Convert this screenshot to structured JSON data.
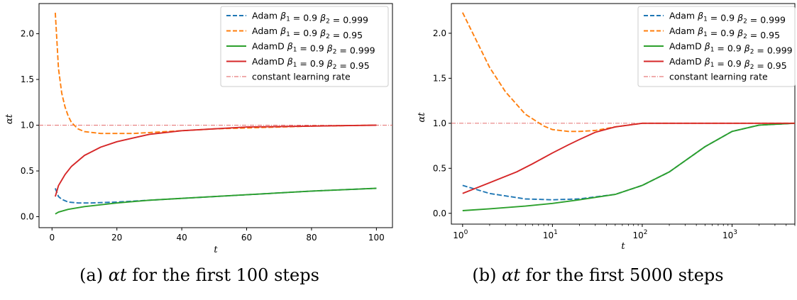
{
  "colors": {
    "adam_0999": "#1f77b4",
    "adam_095": "#ff7f0e",
    "adamd_0999": "#2ca02c",
    "adamd_095": "#d62728",
    "constant_lr": "#e05a5a"
  },
  "captions": [
    {
      "prefix": "(a) ",
      "math": "αt",
      "suffix": " for the first 100 steps"
    },
    {
      "prefix": "(b) ",
      "math": "αt",
      "suffix": " for the first 5000 steps"
    }
  ],
  "legend_entries": [
    {
      "name": "Adam",
      "b1": "0.9",
      "b2": "0.999",
      "style": "dashed",
      "color_key": "adam_0999"
    },
    {
      "name": "Adam",
      "b1": "0.9",
      "b2": "0.95",
      "style": "dashed",
      "color_key": "adam_095"
    },
    {
      "name": "AdamD",
      "b1": "0.9",
      "b2": "0.999",
      "style": "solid",
      "color_key": "adamd_0999"
    },
    {
      "name": "AdamD",
      "b1": "0.9",
      "b2": "0.95",
      "style": "solid",
      "color_key": "adamd_095"
    },
    {
      "name": "constant learning rate",
      "style": "dashdot",
      "color_key": "constant_lr"
    }
  ],
  "chart_data": [
    {
      "type": "line",
      "xscale": "linear",
      "xlabel": "t",
      "ylabel": "αt",
      "xlim": [
        1,
        100
      ],
      "ylim": [
        0,
        2.25
      ],
      "xticks": [
        20,
        40,
        60,
        80,
        100
      ],
      "yticks": [
        0.0,
        0.5,
        1.0,
        1.5,
        2.0
      ],
      "legend_position": "top-right",
      "grid": false,
      "constant_line": 1.0,
      "series": [
        {
          "name": "Adam β1=0.9 β2=0.999",
          "x": [
            1,
            2,
            3,
            5,
            8,
            12,
            20,
            30,
            40,
            60,
            80,
            100
          ],
          "values": [
            0.31,
            0.22,
            0.19,
            0.16,
            0.15,
            0.15,
            0.16,
            0.18,
            0.2,
            0.24,
            0.28,
            0.31
          ]
        },
        {
          "name": "Adam β1=0.9 β2=0.95",
          "x": [
            1,
            2,
            3,
            4,
            5,
            6,
            8,
            10,
            15,
            20,
            25,
            30,
            40,
            50,
            60,
            80,
            100
          ],
          "values": [
            2.23,
            1.62,
            1.35,
            1.2,
            1.1,
            1.03,
            0.96,
            0.93,
            0.91,
            0.91,
            0.91,
            0.92,
            0.94,
            0.96,
            0.97,
            0.99,
            1.0
          ]
        },
        {
          "name": "AdamD β1=0.9 β2=0.999",
          "x": [
            1,
            2,
            5,
            10,
            20,
            30,
            40,
            60,
            80,
            100
          ],
          "values": [
            0.03,
            0.05,
            0.08,
            0.11,
            0.15,
            0.18,
            0.2,
            0.24,
            0.28,
            0.31
          ]
        },
        {
          "name": "AdamD β1=0.9 β2=0.95",
          "x": [
            1,
            2,
            4,
            6,
            10,
            15,
            20,
            25,
            30,
            40,
            50,
            60,
            80,
            100
          ],
          "values": [
            0.22,
            0.34,
            0.46,
            0.55,
            0.67,
            0.76,
            0.82,
            0.86,
            0.9,
            0.94,
            0.96,
            0.98,
            0.99,
            1.0
          ]
        }
      ]
    },
    {
      "type": "line",
      "xscale": "log",
      "xlabel": "t",
      "ylabel": "αt",
      "xlim": [
        1,
        5000
      ],
      "ylim": [
        0,
        2.25
      ],
      "xticks": [
        1,
        10,
        100,
        1000
      ],
      "xtick_labels": [
        {
          "base": "10",
          "exp": "0"
        },
        {
          "base": "10",
          "exp": "1"
        },
        {
          "base": "10",
          "exp": "2"
        },
        {
          "base": "10",
          "exp": "3"
        }
      ],
      "yticks": [
        0.0,
        0.5,
        1.0,
        1.5,
        2.0
      ],
      "legend_position": "top-right",
      "grid": false,
      "constant_line": 1.0,
      "series": [
        {
          "name": "Adam β1=0.9 β2=0.999",
          "x": [
            1,
            2,
            5,
            10,
            20,
            50,
            100,
            200,
            500,
            1000,
            2000,
            5000
          ],
          "values": [
            0.31,
            0.22,
            0.16,
            0.15,
            0.16,
            0.21,
            0.31,
            0.46,
            0.74,
            0.91,
            0.98,
            1.0
          ]
        },
        {
          "name": "Adam β1=0.9 β2=0.95",
          "x": [
            1,
            2,
            3,
            5,
            8,
            10,
            15,
            20,
            30,
            50,
            70,
            100,
            200,
            500,
            1000,
            5000
          ],
          "values": [
            2.23,
            1.62,
            1.35,
            1.1,
            0.97,
            0.93,
            0.91,
            0.91,
            0.92,
            0.96,
            0.98,
            1.0,
            1.0,
            1.0,
            1.0,
            1.0
          ]
        },
        {
          "name": "AdamD β1=0.9 β2=0.999",
          "x": [
            1,
            2,
            5,
            10,
            20,
            50,
            100,
            200,
            500,
            1000,
            2000,
            5000
          ],
          "values": [
            0.03,
            0.05,
            0.08,
            0.11,
            0.15,
            0.21,
            0.31,
            0.46,
            0.74,
            0.91,
            0.98,
            1.0
          ]
        },
        {
          "name": "AdamD β1=0.9 β2=0.95",
          "x": [
            1,
            2,
            4,
            6,
            10,
            15,
            20,
            30,
            50,
            70,
            100,
            200,
            500,
            1000,
            5000
          ],
          "values": [
            0.22,
            0.34,
            0.46,
            0.55,
            0.67,
            0.76,
            0.82,
            0.9,
            0.96,
            0.98,
            1.0,
            1.0,
            1.0,
            1.0,
            1.0
          ]
        }
      ]
    }
  ]
}
